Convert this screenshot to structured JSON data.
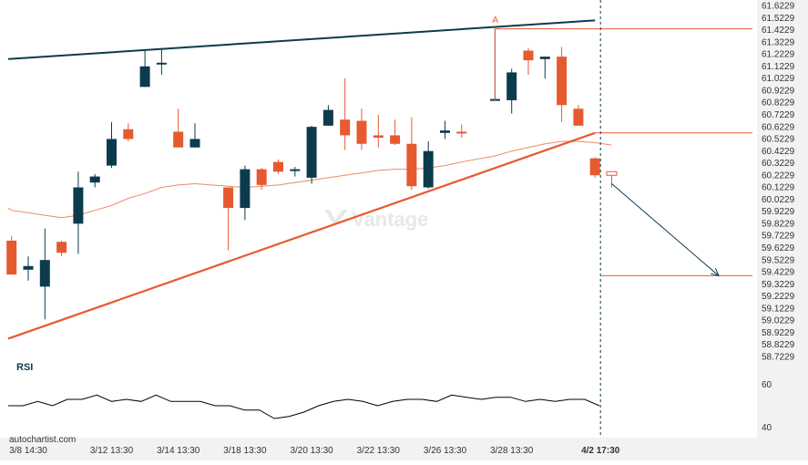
{
  "chart_data": {
    "type": "candlestick",
    "title": "",
    "y_ticks": [
      "61.6229",
      "61.5229",
      "61.4229",
      "61.3229",
      "61.2229",
      "61.1229",
      "61.0229",
      "60.9229",
      "60.8229",
      "60.7229",
      "60.6229",
      "60.5229",
      "60.4229",
      "60.3229",
      "60.2229",
      "60.1229",
      "60.0229",
      "59.9229",
      "59.8229",
      "59.7229",
      "59.6229",
      "59.5229",
      "59.4229",
      "59.3229",
      "59.2229",
      "59.1229",
      "59.0229",
      "58.9229",
      "58.8229",
      "58.7229"
    ],
    "ylim": [
      58.7229,
      61.6229
    ],
    "x_ticks": [
      {
        "label": "3/8 14:30",
        "bar": 1
      },
      {
        "label": "3/12 13:30",
        "bar": 6
      },
      {
        "label": "3/14 13:30",
        "bar": 10
      },
      {
        "label": "3/18 13:30",
        "bar": 14
      },
      {
        "label": "3/20 13:30",
        "bar": 18
      },
      {
        "label": "3/22 13:30",
        "bar": 22
      },
      {
        "label": "3/26 13:30",
        "bar": 26
      },
      {
        "label": "3/28 13:30",
        "bar": 30
      },
      {
        "label": "4/2 17:30",
        "bar": 35,
        "bold": true
      }
    ],
    "candles": [
      {
        "o": 59.68,
        "h": 59.72,
        "l": 59.4,
        "c": 59.4
      },
      {
        "o": 59.44,
        "h": 59.55,
        "l": 59.35,
        "c": 59.47
      },
      {
        "o": 59.3,
        "h": 59.78,
        "l": 59.03,
        "c": 59.52
      },
      {
        "o": 59.67,
        "h": 59.68,
        "l": 59.55,
        "c": 59.58
      },
      {
        "o": 59.82,
        "h": 60.25,
        "l": 59.57,
        "c": 60.12
      },
      {
        "o": 60.16,
        "h": 60.23,
        "l": 60.12,
        "c": 60.21
      },
      {
        "o": 60.3,
        "h": 60.66,
        "l": 60.28,
        "c": 60.52
      },
      {
        "o": 60.6,
        "h": 60.65,
        "l": 60.5,
        "c": 60.52
      },
      {
        "o": 60.95,
        "h": 61.25,
        "l": 60.95,
        "c": 61.12
      },
      {
        "o": 61.15,
        "h": 61.27,
        "l": 61.05,
        "c": 61.15
      },
      {
        "o": 60.58,
        "h": 60.77,
        "l": 60.45,
        "c": 60.45
      },
      {
        "o": 60.45,
        "h": 60.65,
        "l": 60.45,
        "c": 60.52
      },
      {
        "o": null
      },
      {
        "o": 60.12,
        "h": 60.12,
        "l": 59.6,
        "c": 59.95
      },
      {
        "o": 59.95,
        "h": 60.3,
        "l": 59.85,
        "c": 60.27
      },
      {
        "o": 60.27,
        "h": 60.28,
        "l": 60.1,
        "c": 60.14
      },
      {
        "o": 60.33,
        "h": 60.35,
        "l": 60.23,
        "c": 60.25
      },
      {
        "o": 60.27,
        "h": 60.29,
        "l": 60.21,
        "c": 60.27
      },
      {
        "o": 60.2,
        "h": 60.63,
        "l": 60.15,
        "c": 60.62
      },
      {
        "o": 60.63,
        "h": 60.8,
        "l": 60.63,
        "c": 60.76
      },
      {
        "o": 60.68,
        "h": 61.02,
        "l": 60.43,
        "c": 60.55
      },
      {
        "o": 60.67,
        "h": 60.77,
        "l": 60.43,
        "c": 60.48
      },
      {
        "o": 60.55,
        "h": 60.72,
        "l": 60.45,
        "c": 60.53
      },
      {
        "o": 60.55,
        "h": 60.68,
        "l": 60.47,
        "c": 60.48
      },
      {
        "o": 60.48,
        "h": 60.7,
        "l": 60.1,
        "c": 60.13
      },
      {
        "o": 60.12,
        "h": 60.5,
        "l": 60.11,
        "c": 60.42
      },
      {
        "o": 60.57,
        "h": 60.67,
        "l": 60.52,
        "c": 60.59
      },
      {
        "o": 60.58,
        "h": 60.64,
        "l": 60.53,
        "c": 60.57
      },
      {
        "o": null
      },
      {
        "o": 60.85,
        "h": 61.43,
        "l": 60.84,
        "c": 60.85
      },
      {
        "o": 60.84,
        "h": 61.1,
        "l": 60.73,
        "c": 61.07
      },
      {
        "o": 61.25,
        "h": 61.27,
        "l": 61.05,
        "c": 61.17
      },
      {
        "o": 61.18,
        "h": 61.2,
        "l": 61.02,
        "c": 61.2
      },
      {
        "o": 61.2,
        "h": 61.28,
        "l": 60.66,
        "c": 60.8
      },
      {
        "o": 60.77,
        "h": 60.8,
        "l": 60.63,
        "c": 60.63
      },
      {
        "o": 60.36,
        "h": 60.37,
        "l": 60.2,
        "c": 60.22
      },
      {
        "o": 60.22,
        "h": 60.25,
        "l": 60.12,
        "c": 60.25,
        "hollow": true
      }
    ],
    "moving_average": [
      59.93,
      59.91,
      59.89,
      59.87,
      59.89,
      59.93,
      59.97,
      60.03,
      60.07,
      60.12,
      60.14,
      60.15,
      null,
      60.13,
      60.12,
      60.13,
      60.14,
      60.16,
      60.18,
      60.2,
      60.22,
      60.24,
      60.26,
      60.27,
      60.27,
      60.28,
      60.3,
      60.33,
      null,
      60.38,
      60.42,
      60.45,
      60.48,
      60.5,
      60.5,
      60.49,
      60.47
    ],
    "upper_trendline": [
      [
        0,
        61.18
      ],
      [
        35,
        61.5
      ]
    ],
    "lower_trendline": [
      [
        0,
        58.87
      ],
      [
        35,
        60.57
      ]
    ],
    "level_lines": [
      {
        "value": 61.43,
        "from_bar": 29
      },
      {
        "value": 60.57,
        "from_bar": 35
      },
      {
        "value": 59.39,
        "from_bar": 36
      }
    ],
    "point_label": {
      "text": "A",
      "bar": 29,
      "value": 61.45
    },
    "projection_arrow": {
      "from": [
        36,
        60.15
      ],
      "to": [
        43,
        59.39
      ]
    },
    "current_bar": 35,
    "rsi": {
      "label": "RSI",
      "ticks": [
        "60",
        "40"
      ],
      "ylim": [
        35,
        65
      ],
      "values": [
        50,
        50,
        52,
        50,
        53,
        53,
        55,
        52,
        53,
        52,
        55,
        52,
        52,
        52,
        50,
        50,
        48,
        48,
        44,
        45,
        47,
        50,
        52,
        53,
        52,
        50,
        52,
        53,
        53,
        52,
        55,
        54,
        53,
        54,
        54,
        52,
        53,
        52,
        53,
        53,
        50
      ]
    },
    "watermark": "Vantage",
    "footer": "autochartist.com"
  },
  "colors": {
    "up": "#0d3b4e",
    "down": "#e65a2f",
    "ma": "#ea8a68",
    "trend_upper": "#0d3b4e",
    "trend_lower": "#e65a2f",
    "rsi": "#000000"
  }
}
